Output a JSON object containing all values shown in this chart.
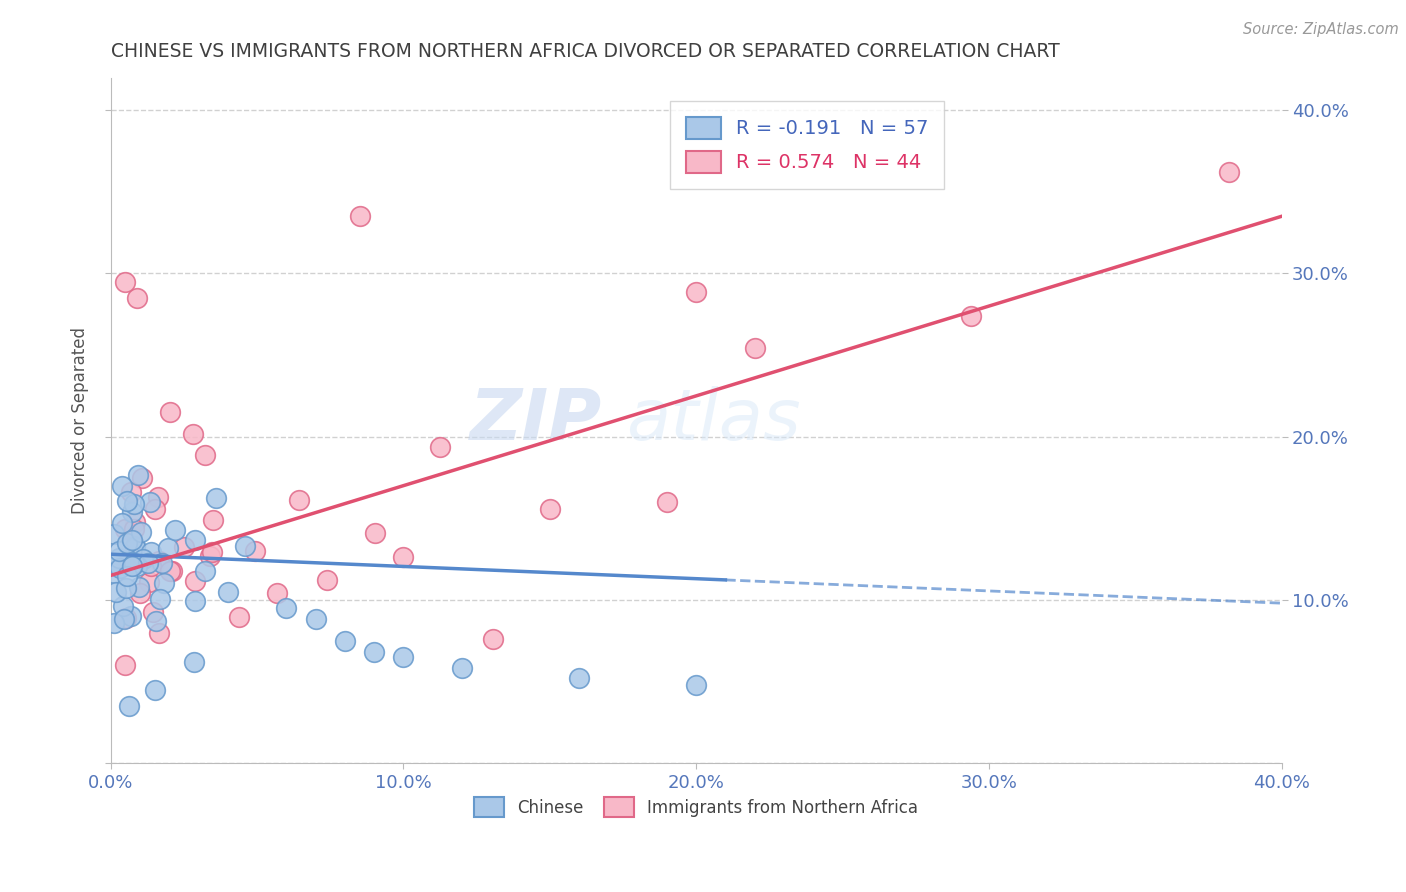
{
  "title": "CHINESE VS IMMIGRANTS FROM NORTHERN AFRICA DIVORCED OR SEPARATED CORRELATION CHART",
  "source": "Source: ZipAtlas.com",
  "ylabel": "Divorced or Separated",
  "xlim": [
    0.0,
    0.4
  ],
  "ylim": [
    0.0,
    0.42
  ],
  "chinese_R": -0.191,
  "chinese_N": 57,
  "northern_africa_R": 0.574,
  "northern_africa_N": 44,
  "chinese_color": "#aac8e8",
  "chinese_edge_color": "#6699cc",
  "northern_africa_color": "#f8b8c8",
  "northern_africa_edge_color": "#e06888",
  "chinese_line_color": "#5588cc",
  "northern_africa_line_color": "#e05070",
  "background_color": "#ffffff",
  "grid_color": "#cccccc",
  "title_color": "#404040",
  "axis_tick_color": "#5577bb",
  "legend_R_color_chinese": "#4466bb",
  "legend_R_color_northern": "#dd3366",
  "ytick_values": [
    0.0,
    0.1,
    0.2,
    0.3,
    0.4
  ],
  "xtick_values": [
    0.0,
    0.1,
    0.2,
    0.3,
    0.4
  ],
  "right_ytick_values": [
    0.1,
    0.2,
    0.3,
    0.4
  ],
  "chinese_trend_x0": 0.0,
  "chinese_trend_y0": 0.128,
  "chinese_trend_x1": 0.4,
  "chinese_trend_y1": 0.098,
  "na_trend_x0": 0.0,
  "na_trend_y0": 0.115,
  "na_trend_x1": 0.4,
  "na_trend_y1": 0.335
}
